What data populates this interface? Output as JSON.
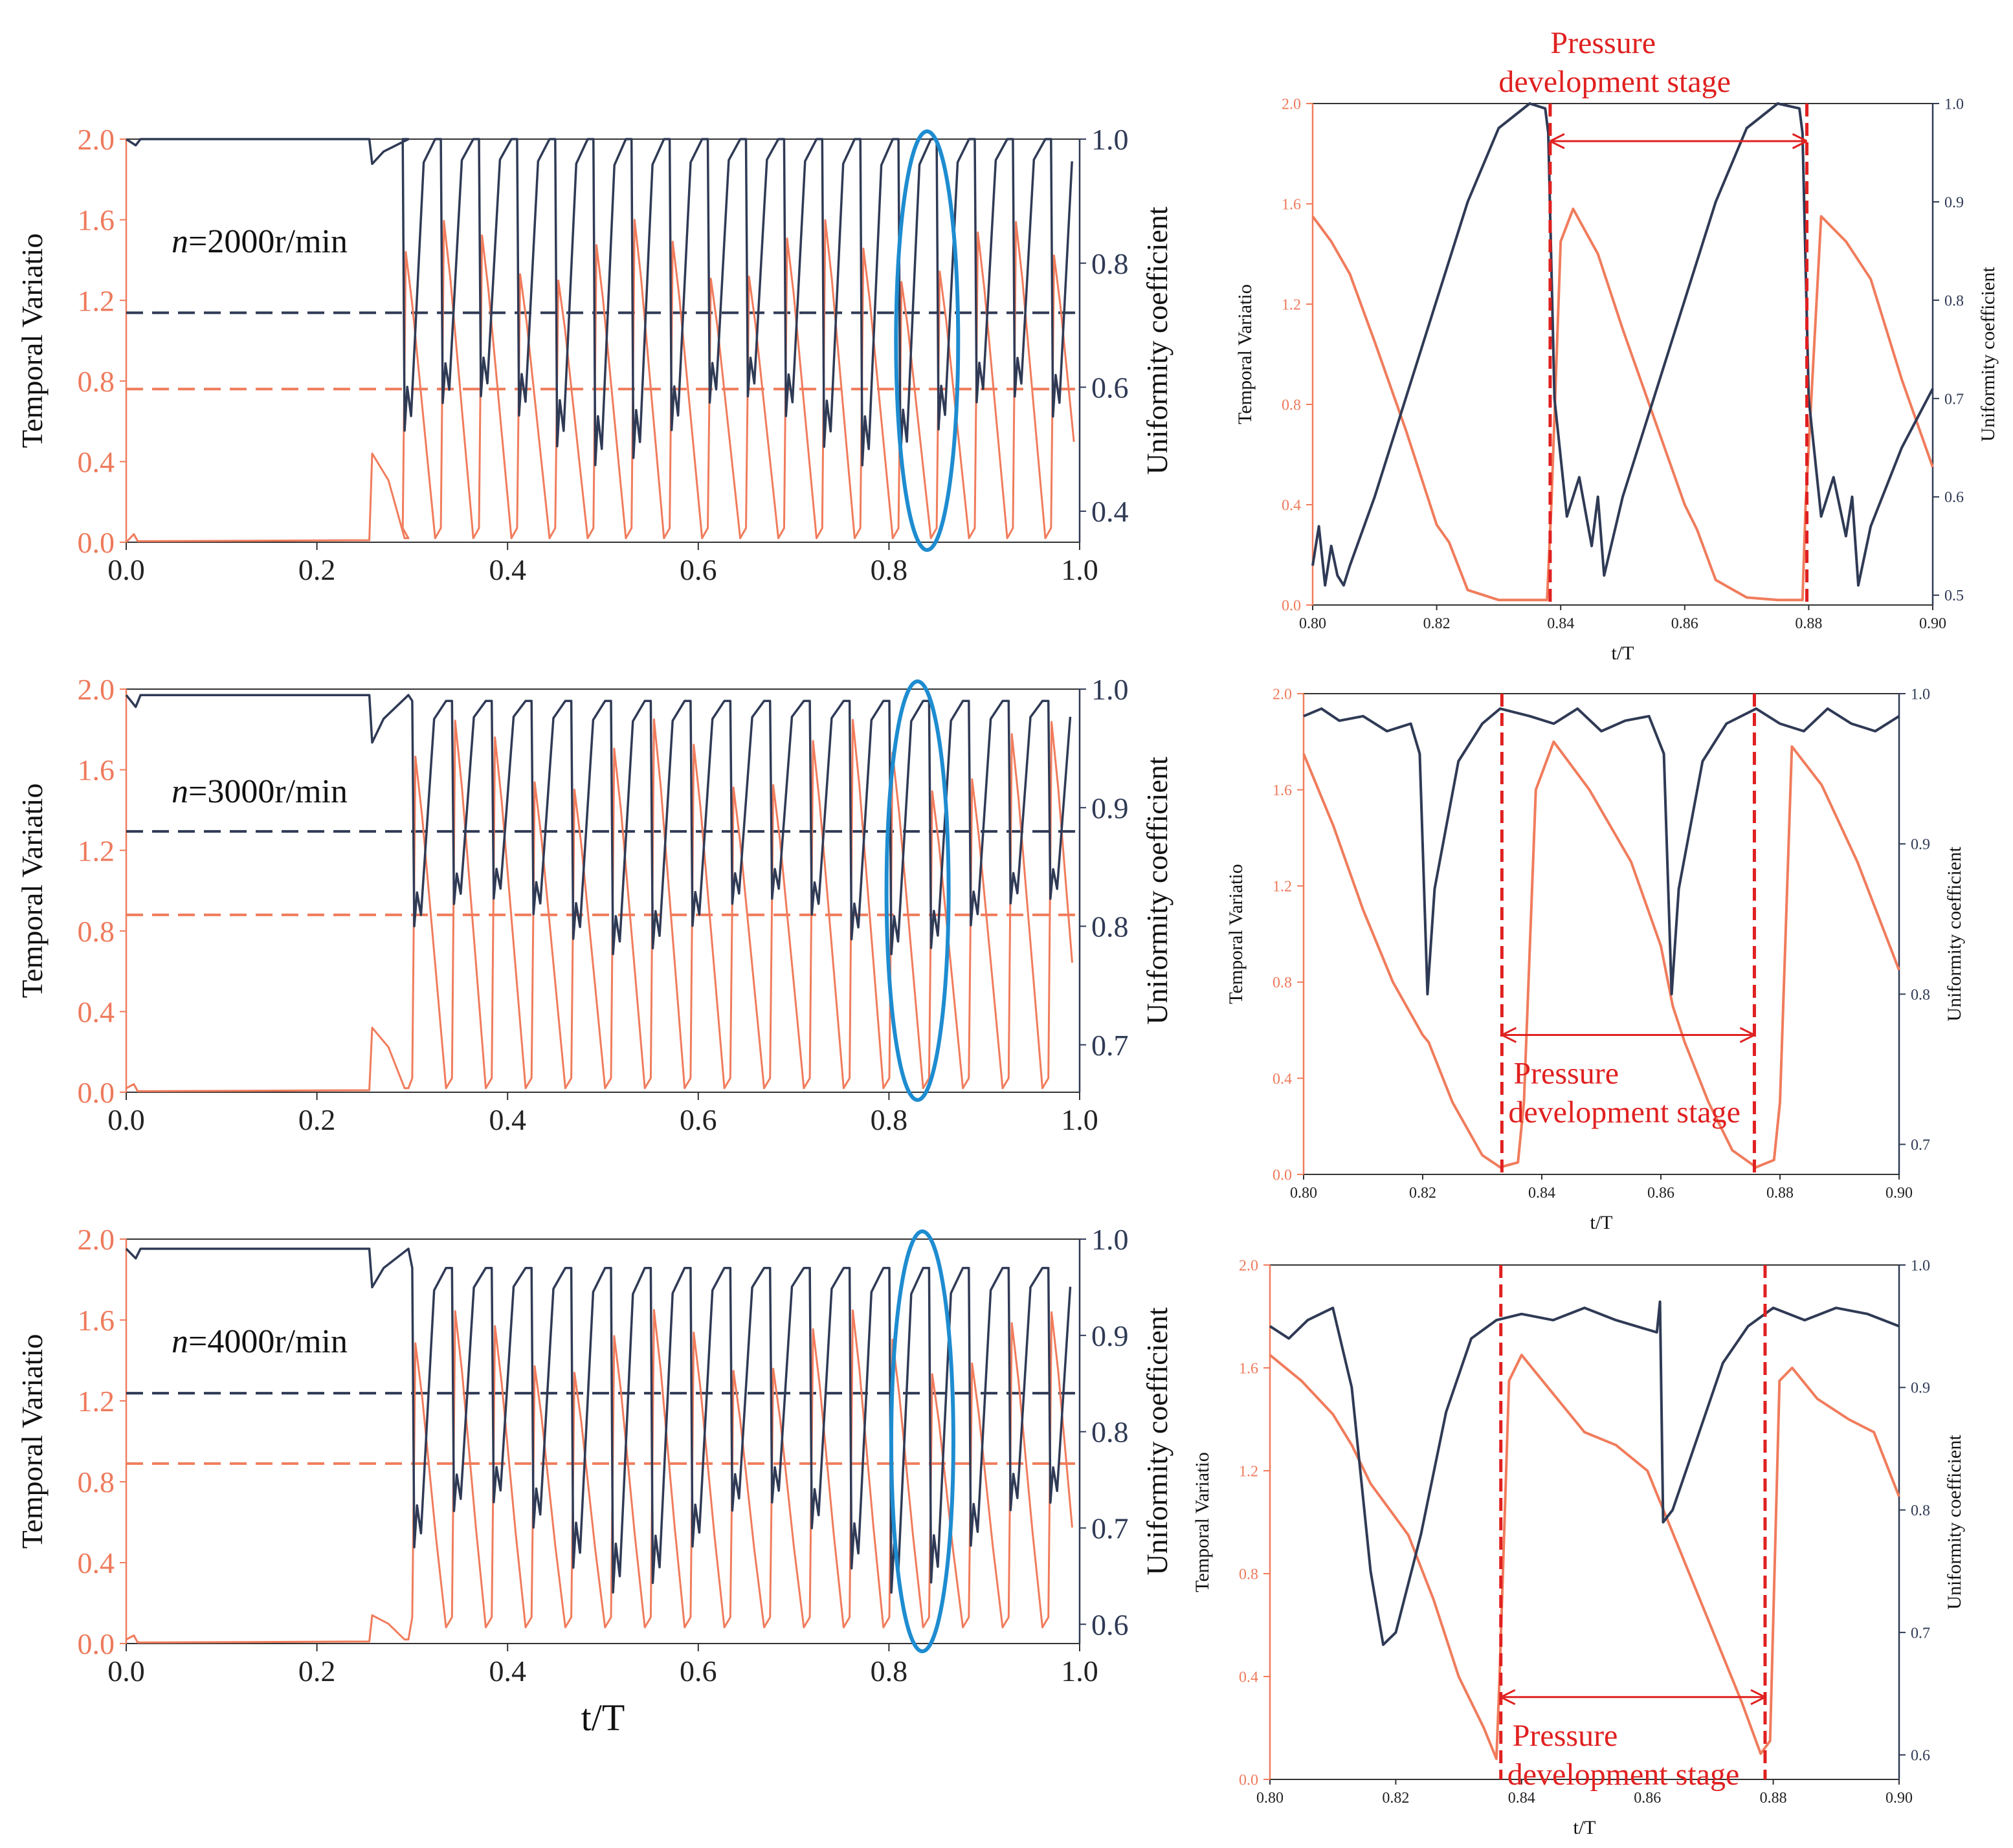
{
  "colors": {
    "temporal": "#F07C5C",
    "uniformity": "#2F3A55",
    "highlight": "#1E8CD0",
    "annotation": "#E02020",
    "axis": "#333333"
  },
  "chart_data": [
    {
      "id": "p1",
      "kind": "overview",
      "type": "line",
      "xlabel": "",
      "ylabel_left": "Temporal Variatio",
      "ylabel_right": "Uniformity coefficient",
      "xlim": [
        0.0,
        1.0
      ],
      "xticks": [
        "0.0",
        "0.2",
        "0.4",
        "0.6",
        "0.8",
        "1.0"
      ],
      "ylim_left": [
        0.0,
        2.0
      ],
      "yticks_left": [
        "0.0",
        "0.4",
        "0.8",
        "1.2",
        "1.6",
        "2.0"
      ],
      "ylim_right": [
        0.35,
        1.0
      ],
      "yticks_right": [
        "0.4",
        "0.6",
        "0.8",
        "1.0"
      ],
      "label_prefix": "n",
      "label_value": "=2000r/min",
      "period": 0.04,
      "x_start": 0.29,
      "series": [
        {
          "name": "Temporal Variatio",
          "axis": "left",
          "color": "temporal",
          "mean": 0.76,
          "peak": 1.6,
          "trough": 0.02,
          "pre_value": 0.0,
          "bump": 0.44
        },
        {
          "name": "Uniformity coefficient",
          "axis": "right",
          "color": "uniformity",
          "mean": 0.72,
          "peak": 1.0,
          "trough": 0.53,
          "pre_value": 1.0
        }
      ],
      "highlight_x": 0.84
    },
    {
      "id": "p2",
      "kind": "overview",
      "type": "line",
      "xlabel": "",
      "ylabel_left": "Temporal Variatio",
      "ylabel_right": "Uniformity coefficient",
      "xlim": [
        0.0,
        1.0
      ],
      "xticks": [
        "0.0",
        "0.2",
        "0.4",
        "0.6",
        "0.8",
        "1.0"
      ],
      "ylim_left": [
        0.0,
        2.0
      ],
      "yticks_left": [
        "0.0",
        "0.4",
        "0.8",
        "1.2",
        "1.6",
        "2.0"
      ],
      "ylim_right": [
        0.66,
        1.0
      ],
      "yticks_right": [
        "0.7",
        "0.8",
        "0.9",
        "1.0"
      ],
      "label_prefix": "n",
      "label_value": "=3000r/min",
      "period": 0.0417,
      "x_start": 0.3,
      "series": [
        {
          "name": "Temporal Variatio",
          "axis": "left",
          "color": "temporal",
          "mean": 0.88,
          "peak": 1.85,
          "trough": 0.02,
          "pre_value": 0.02,
          "bump": 0.32
        },
        {
          "name": "Uniformity coefficient",
          "axis": "right",
          "color": "uniformity",
          "mean": 0.88,
          "peak": 0.99,
          "trough": 0.8,
          "pre_value": 0.995
        }
      ],
      "highlight_x": 0.83
    },
    {
      "id": "p3",
      "kind": "overview",
      "type": "line",
      "xlabel": "t/T",
      "ylabel_left": "Temporal Variatio",
      "ylabel_right": "Uniformity coefficient",
      "xlim": [
        0.0,
        1.0
      ],
      "xticks": [
        "0.0",
        "0.2",
        "0.4",
        "0.6",
        "0.8",
        "1.0"
      ],
      "ylim_left": [
        0.0,
        2.0
      ],
      "yticks_left": [
        "0.0",
        "0.4",
        "0.8",
        "1.2",
        "1.6",
        "2.0"
      ],
      "ylim_right": [
        0.58,
        1.0
      ],
      "yticks_right": [
        "0.6",
        "0.7",
        "0.8",
        "0.9",
        "1.0"
      ],
      "label_prefix": "n",
      "label_value": "=4000r/min",
      "period": 0.0417,
      "x_start": 0.3,
      "series": [
        {
          "name": "Temporal Variatio",
          "axis": "left",
          "color": "temporal",
          "mean": 0.89,
          "peak": 1.65,
          "trough": 0.08,
          "pre_value": 0.02,
          "bump": 0.14
        },
        {
          "name": "Uniformity coefficient",
          "axis": "right",
          "color": "uniformity",
          "mean": 0.84,
          "peak": 0.97,
          "trough": 0.68,
          "pre_value": 0.99
        }
      ],
      "highlight_x": 0.835
    },
    {
      "id": "z1",
      "kind": "zoom",
      "type": "line",
      "xlabel": "t/T",
      "ylabel_left": "Temporal Variatio",
      "ylabel_right": "Uniformity coefficient",
      "xlim": [
        0.8,
        0.9
      ],
      "xticks": [
        "0.80",
        "0.82",
        "0.84",
        "0.86",
        "0.88",
        "0.90"
      ],
      "ylim_left": [
        0.0,
        2.0
      ],
      "yticks_left": [
        "0.0",
        "0.4",
        "0.8",
        "1.2",
        "1.6",
        "2.0"
      ],
      "ylim_right": [
        0.49,
        1.0
      ],
      "yticks_right": [
        "0.5",
        "0.6",
        "0.7",
        "0.8",
        "0.9",
        "1.0"
      ],
      "series": [
        {
          "name": "Temporal Variatio",
          "axis": "left",
          "color": "temporal",
          "x": [
            0.8,
            0.803,
            0.806,
            0.81,
            0.815,
            0.82,
            0.822,
            0.825,
            0.83,
            0.834,
            0.8378,
            0.8385,
            0.84,
            0.842,
            0.846,
            0.85,
            0.855,
            0.86,
            0.862,
            0.865,
            0.87,
            0.875,
            0.879,
            0.8795,
            0.882,
            0.886,
            0.89,
            0.895,
            0.9
          ],
          "y": [
            1.55,
            1.45,
            1.32,
            1.05,
            0.7,
            0.32,
            0.25,
            0.06,
            0.02,
            0.02,
            0.02,
            0.4,
            1.45,
            1.58,
            1.4,
            1.1,
            0.75,
            0.4,
            0.3,
            0.1,
            0.03,
            0.02,
            0.02,
            0.4,
            1.55,
            1.45,
            1.3,
            0.9,
            0.55
          ]
        },
        {
          "name": "Uniformity coefficient",
          "axis": "right",
          "color": "uniformity",
          "x": [
            0.8,
            0.801,
            0.802,
            0.803,
            0.804,
            0.805,
            0.806,
            0.81,
            0.815,
            0.82,
            0.825,
            0.83,
            0.835,
            0.8375,
            0.838,
            0.839,
            0.841,
            0.843,
            0.845,
            0.846,
            0.847,
            0.85,
            0.855,
            0.86,
            0.865,
            0.87,
            0.875,
            0.8785,
            0.879,
            0.88,
            0.882,
            0.884,
            0.886,
            0.887,
            0.888,
            0.89,
            0.895,
            0.9
          ],
          "y": [
            0.53,
            0.57,
            0.51,
            0.55,
            0.52,
            0.51,
            0.53,
            0.6,
            0.7,
            0.8,
            0.9,
            0.975,
            1.0,
            0.995,
            0.97,
            0.7,
            0.58,
            0.62,
            0.55,
            0.6,
            0.52,
            0.6,
            0.7,
            0.8,
            0.9,
            0.975,
            1.0,
            0.995,
            0.97,
            0.7,
            0.58,
            0.62,
            0.56,
            0.6,
            0.51,
            0.57,
            0.65,
            0.71
          ]
        }
      ],
      "vlines_x": [
        0.8383,
        0.8797
      ],
      "arrow": {
        "x1": 0.8383,
        "x2": 0.8797,
        "y_left": 1.85
      },
      "annotation_lines": [
        "Pressure",
        "development stage"
      ],
      "annotation_pos": "above-plot"
    },
    {
      "id": "z2",
      "kind": "zoom",
      "type": "line",
      "xlabel": "t/T",
      "ylabel_left": "Temporal Variatio",
      "ylabel_right": "Uniformity coefficient",
      "xlim": [
        0.8,
        0.9
      ],
      "xticks": [
        "0.80",
        "0.82",
        "0.84",
        "0.86",
        "0.88",
        "0.90"
      ],
      "ylim_left": [
        0.0,
        2.0
      ],
      "yticks_left": [
        "0.0",
        "0.4",
        "0.8",
        "1.2",
        "1.6",
        "2.0"
      ],
      "ylim_right": [
        0.68,
        1.0
      ],
      "yticks_right": [
        "0.7",
        "0.8",
        "0.9",
        "1.0"
      ],
      "series": [
        {
          "name": "Temporal Variatio",
          "axis": "left",
          "color": "temporal",
          "x": [
            0.8,
            0.805,
            0.81,
            0.815,
            0.82,
            0.821,
            0.825,
            0.83,
            0.833,
            0.836,
            0.837,
            0.839,
            0.842,
            0.848,
            0.855,
            0.86,
            0.862,
            0.864,
            0.868,
            0.872,
            0.876,
            0.879,
            0.88,
            0.882,
            0.887,
            0.893,
            0.9
          ],
          "y": [
            1.75,
            1.45,
            1.1,
            0.8,
            0.58,
            0.55,
            0.3,
            0.08,
            0.03,
            0.05,
            0.3,
            1.6,
            1.8,
            1.6,
            1.3,
            0.95,
            0.7,
            0.55,
            0.3,
            0.1,
            0.03,
            0.06,
            0.3,
            1.78,
            1.62,
            1.3,
            0.85
          ]
        },
        {
          "name": "Uniformity coefficient",
          "axis": "right",
          "color": "uniformity",
          "x": [
            0.8,
            0.803,
            0.806,
            0.81,
            0.814,
            0.818,
            0.8195,
            0.8208,
            0.822,
            0.826,
            0.83,
            0.833,
            0.838,
            0.842,
            0.846,
            0.85,
            0.854,
            0.858,
            0.8605,
            0.8618,
            0.863,
            0.867,
            0.871,
            0.876,
            0.88,
            0.884,
            0.888,
            0.892,
            0.896,
            0.9
          ],
          "y": [
            0.985,
            0.99,
            0.982,
            0.985,
            0.975,
            0.98,
            0.96,
            0.8,
            0.87,
            0.955,
            0.98,
            0.99,
            0.985,
            0.98,
            0.99,
            0.975,
            0.982,
            0.985,
            0.96,
            0.8,
            0.87,
            0.955,
            0.98,
            0.99,
            0.98,
            0.975,
            0.99,
            0.98,
            0.975,
            0.985
          ]
        }
      ],
      "vlines_x": [
        0.8333,
        0.8757
      ],
      "arrow": {
        "x1": 0.8333,
        "x2": 0.8757,
        "y_left": 0.58
      },
      "annotation_lines": [
        "Pressure",
        "development stage"
      ],
      "annotation_pos": "inside-bottom"
    },
    {
      "id": "z3",
      "kind": "zoom",
      "type": "line",
      "xlabel": "t/T",
      "ylabel_left": "Temporal Variatio",
      "ylabel_right": "Uniformity coefficient",
      "xlim": [
        0.8,
        0.9
      ],
      "xticks": [
        "0.80",
        "0.82",
        "0.84",
        "0.86",
        "0.88",
        "0.90"
      ],
      "ylim_left": [
        0.0,
        2.0
      ],
      "yticks_left": [
        "0.0",
        "0.4",
        "0.8",
        "1.2",
        "1.6",
        "2.0"
      ],
      "ylim_right": [
        0.58,
        1.0
      ],
      "yticks_right": [
        "0.6",
        "0.7",
        "0.8",
        "0.9",
        "1.0"
      ],
      "series": [
        {
          "name": "Temporal Variatio",
          "axis": "left",
          "color": "temporal",
          "x": [
            0.8,
            0.805,
            0.81,
            0.813,
            0.816,
            0.819,
            0.822,
            0.826,
            0.83,
            0.834,
            0.836,
            0.8365,
            0.838,
            0.84,
            0.845,
            0.85,
            0.855,
            0.86,
            0.865,
            0.87,
            0.875,
            0.878,
            0.8795,
            0.881,
            0.883,
            0.887,
            0.892,
            0.896,
            0.9
          ],
          "y": [
            1.65,
            1.55,
            1.42,
            1.3,
            1.15,
            1.05,
            0.95,
            0.7,
            0.4,
            0.2,
            0.08,
            0.4,
            1.55,
            1.65,
            1.5,
            1.35,
            1.3,
            1.2,
            0.9,
            0.6,
            0.3,
            0.1,
            0.15,
            1.55,
            1.6,
            1.48,
            1.4,
            1.35,
            1.1
          ]
        },
        {
          "name": "Uniformity coefficient",
          "axis": "right",
          "color": "uniformity",
          "x": [
            0.8,
            0.803,
            0.806,
            0.81,
            0.813,
            0.816,
            0.818,
            0.82,
            0.824,
            0.828,
            0.832,
            0.836,
            0.84,
            0.845,
            0.85,
            0.855,
            0.8615,
            0.862,
            0.8625,
            0.864,
            0.868,
            0.872,
            0.876,
            0.88,
            0.885,
            0.89,
            0.895,
            0.9
          ],
          "y": [
            0.95,
            0.94,
            0.955,
            0.965,
            0.9,
            0.75,
            0.69,
            0.7,
            0.78,
            0.88,
            0.94,
            0.955,
            0.96,
            0.955,
            0.965,
            0.955,
            0.945,
            0.97,
            0.79,
            0.8,
            0.86,
            0.92,
            0.95,
            0.965,
            0.955,
            0.965,
            0.96,
            0.95
          ]
        }
      ],
      "vlines_x": [
        0.8367,
        0.8787
      ],
      "arrow": {
        "x1": 0.8367,
        "x2": 0.8787,
        "y_left": 0.32
      },
      "annotation_lines": [
        "Pressure",
        "development stage"
      ],
      "annotation_pos": "inside-bottom"
    }
  ]
}
